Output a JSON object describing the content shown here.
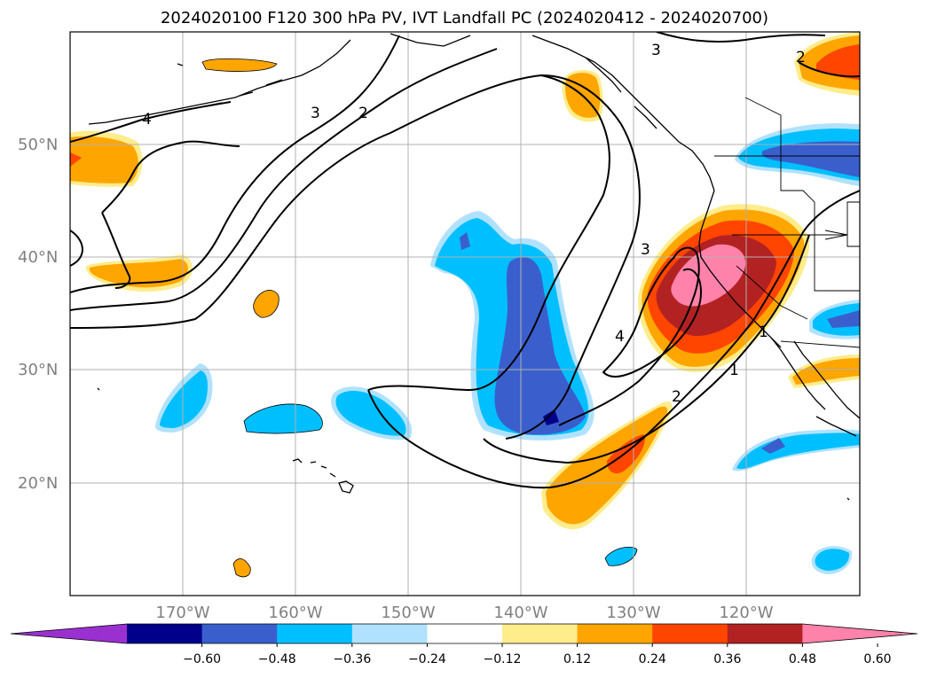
{
  "title": "2024020100 F120 300 hPa PV, IVT Landfall PC (2024020412 - 2024020700)",
  "lon_labels": [
    "170°W",
    "160°W",
    "150°W",
    "140°W",
    "130°W",
    "120°W"
  ],
  "lat_labels": [
    "50°N",
    "40°N",
    "30°N",
    "20°N"
  ],
  "colorbar": {
    "ticks": [
      "−0.60",
      "−0.48",
      "−0.36",
      "−0.24",
      "−0.12",
      "0.12",
      "0.24",
      "0.36",
      "0.48",
      "0.60"
    ],
    "colors": [
      "#9b30d0",
      "#00008b",
      "#3a5fcd",
      "#00bfff",
      "#b0e2ff",
      "#ffffff",
      "#ffec8b",
      "#ffa500",
      "#ff4500",
      "#b22222",
      "#ff82ab"
    ]
  },
  "contour_labels": [
    "4",
    "3",
    "2",
    "3",
    "3",
    "4",
    "2",
    "1",
    "1",
    "2"
  ],
  "map": {
    "lon_range": [
      -180,
      -110
    ],
    "lat_range": [
      10,
      60
    ],
    "gridlines": true
  }
}
